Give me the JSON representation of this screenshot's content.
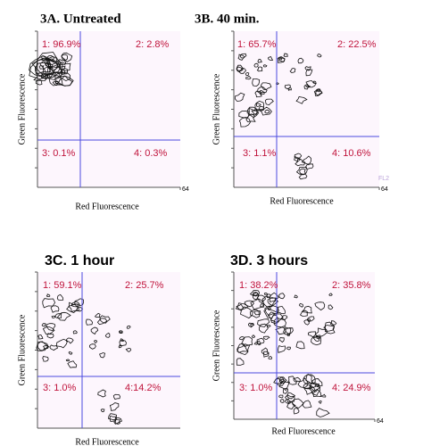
{
  "chart_data": [
    {
      "type": "contour",
      "title": "3A. Untreated",
      "xlabel": "Red Fluorescence",
      "ylabel": "Green Fluorescence",
      "annotations": [
        "1: 96.9%",
        "2: 2.8%",
        "3: 0.1%",
        "4: 0.3%"
      ],
      "xlim": [
        0,
        64
      ],
      "xticks": [
        64
      ]
    },
    {
      "type": "contour",
      "title": "3B. 40 min.",
      "xlabel": "Red Fluorescence",
      "ylabel": "Green Fluorescence",
      "annotations": [
        "1: 65.7%",
        "2: 22.5%",
        "3: 1.1%",
        "4: 10.6%"
      ],
      "axis_tag": "FL2",
      "xlim": [
        0,
        64
      ],
      "xticks": [
        64
      ]
    },
    {
      "type": "contour",
      "title": "3C. 1 hour",
      "xlabel": "Red Fluorescence",
      "ylabel": "Green Fluorescence",
      "annotations": [
        "1: 59.1%",
        "2: 25.7%",
        "3: 1.0%",
        "4:14.2%"
      ]
    },
    {
      "type": "contour",
      "title": "3D. 3 hours",
      "xlabel": "Red Fluorescence",
      "ylabel": "Green Fluorescence",
      "annotations": [
        "1: 38.2%",
        "2: 35.8%",
        "3: 1.0%",
        "4: 24.9%"
      ],
      "xlim": [
        0,
        64
      ],
      "xticks": [
        64
      ]
    }
  ]
}
